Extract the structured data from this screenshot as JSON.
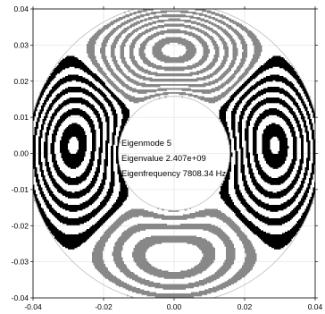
{
  "chart_data": {
    "type": "heatmap",
    "title": "",
    "xlabel": "",
    "ylabel": "",
    "xlim": [
      -0.04,
      0.04
    ],
    "ylim": [
      -0.04,
      0.04
    ],
    "x_ticks": [
      -0.04,
      -0.02,
      0.0,
      0.02,
      0.04
    ],
    "y_ticks": [
      0.04,
      0.03,
      0.02,
      0.01,
      0.0,
      -0.01,
      -0.02,
      -0.03,
      -0.04
    ],
    "x_tick_labels": [
      "-0.04",
      "-0.02",
      "0.00",
      "0.02",
      "0.04"
    ],
    "y_tick_labels": [
      "0.04",
      "0.03",
      "0.02",
      "0.01",
      "0.00",
      "-0.01",
      "-0.02",
      "-0.03",
      "-0.04"
    ],
    "grid": true,
    "annular_domain": {
      "inner_radius": 0.0158,
      "outer_radius": 0.0415
    },
    "field_colors": {
      "positive": "#000000",
      "negative": "#888888",
      "background": "#ffffff"
    },
    "annotations": {
      "mode": "Eigenmode 5",
      "eigenvalue": "Eigenvalue 2.407e+09",
      "eigenfrequency": "Eigenfrequency 7808.34 Hz"
    }
  }
}
